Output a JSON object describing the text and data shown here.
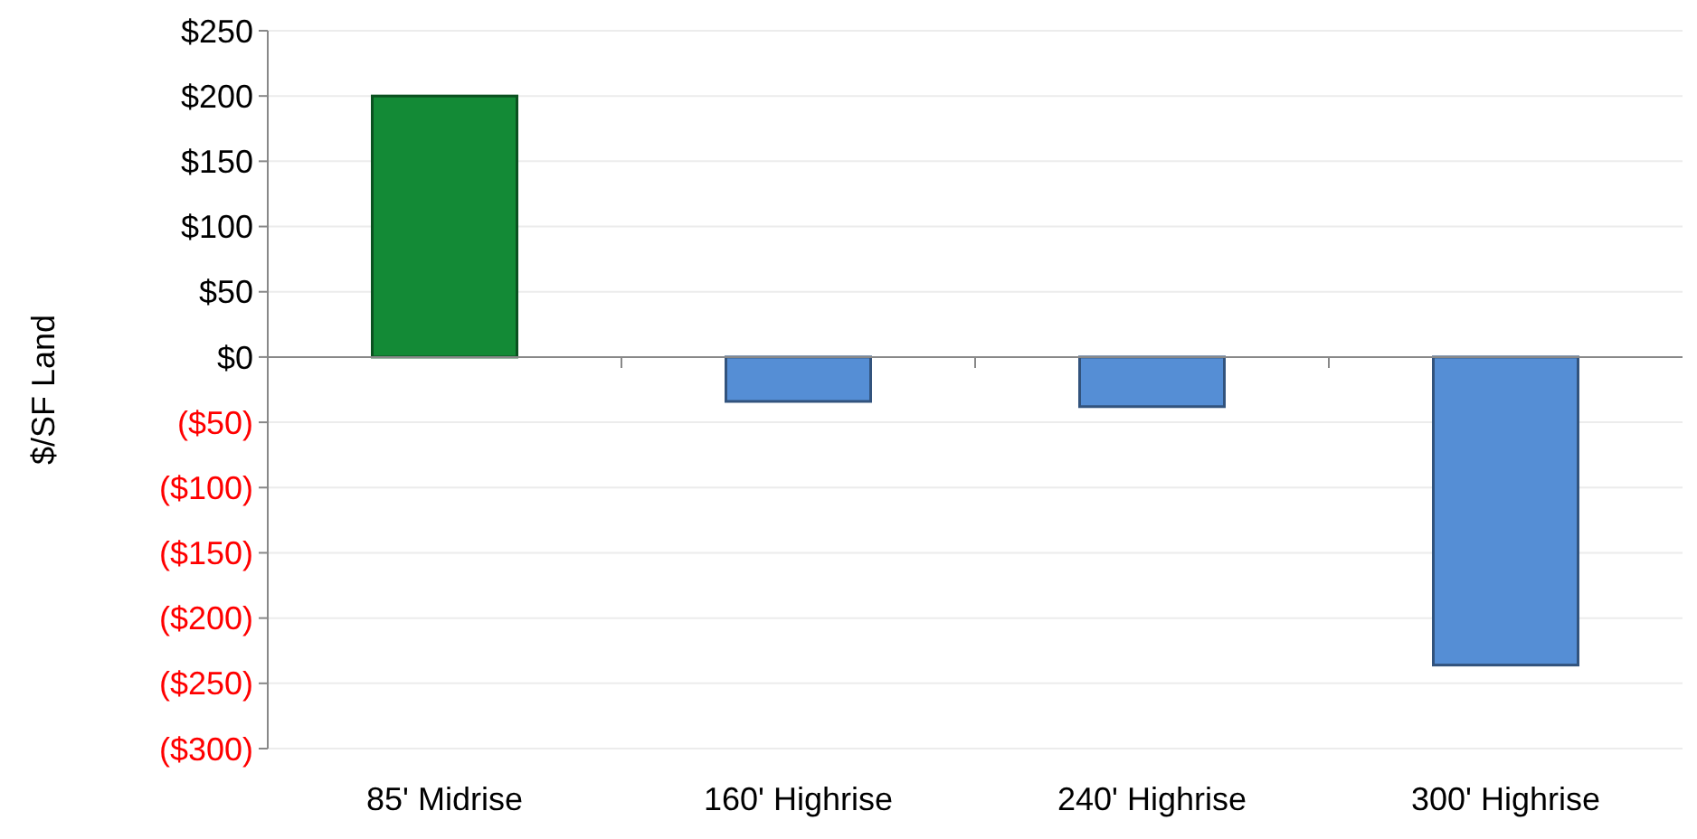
{
  "chart_data": {
    "type": "bar",
    "ylabel": "$/SF Land",
    "categories": [
      "85' Midrise",
      "160' Highrise",
      "240' Highrise",
      "300' Highrise"
    ],
    "values": [
      200,
      -34,
      -38,
      -236
    ],
    "colors": [
      "#138a36",
      "#558ed5",
      "#558ed5",
      "#558ed5"
    ],
    "ylim": [
      -300,
      250
    ],
    "yticks": [
      {
        "value": 250,
        "label": "$250"
      },
      {
        "value": 200,
        "label": "$200"
      },
      {
        "value": 150,
        "label": "$150"
      },
      {
        "value": 100,
        "label": "$100"
      },
      {
        "value": 50,
        "label": "$50"
      },
      {
        "value": 0,
        "label": "$0"
      },
      {
        "value": -50,
        "label": "($50)"
      },
      {
        "value": -100,
        "label": "($100)"
      },
      {
        "value": -150,
        "label": "($150)"
      },
      {
        "value": -200,
        "label": "($200)"
      },
      {
        "value": -250,
        "label": "($250)"
      },
      {
        "value": -300,
        "label": "($300)"
      }
    ],
    "grid": "y"
  }
}
